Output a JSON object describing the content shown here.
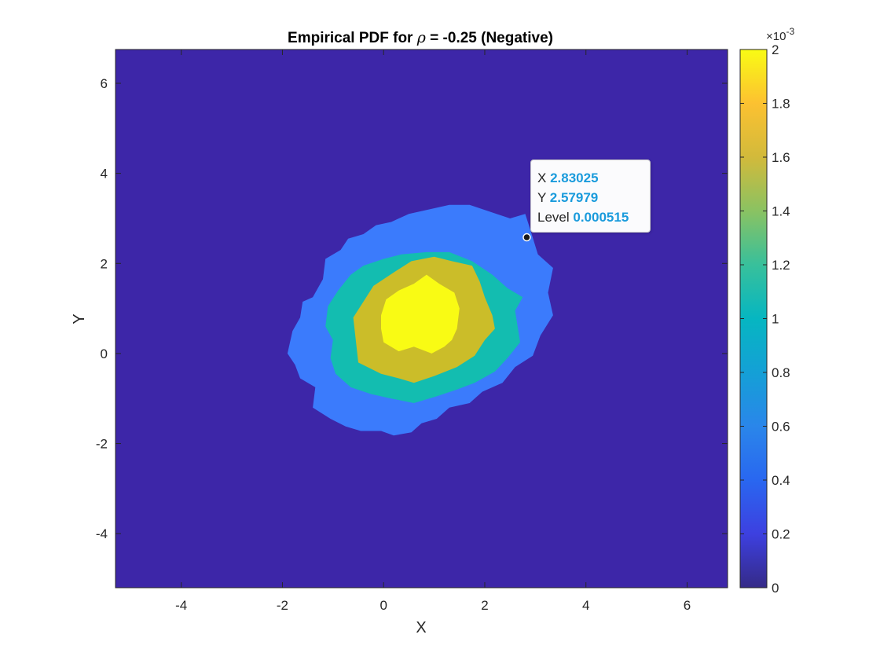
{
  "chart_data": {
    "type": "contourf",
    "title": "Empirical PDF for ρ = -0.25 (Negative)",
    "title_parts": {
      "prefix": "Empirical PDF for ",
      "symbol": "ρ",
      "suffix": " = -0.25 (Negative)"
    },
    "xlabel": "X",
    "ylabel": "Y",
    "xlim": [
      -5.3,
      6.8
    ],
    "ylim": [
      -5.2,
      6.75
    ],
    "xticks": [
      -4,
      -2,
      0,
      2,
      4,
      6
    ],
    "yticks": [
      -4,
      -2,
      0,
      2,
      4,
      6
    ],
    "xtick_labels": [
      "-4",
      "-2",
      "0",
      "2",
      "4",
      "6"
    ],
    "ytick_labels": [
      "-4",
      "-2",
      "0",
      "2",
      "4",
      "6"
    ],
    "background_level_color": "#3d26a8",
    "contour_levels": [
      {
        "level": 0.0005,
        "color": "#3b7bfc",
        "outline": [
          [
            -1.9,
            0.0
          ],
          [
            -1.8,
            0.5
          ],
          [
            -1.65,
            0.8
          ],
          [
            -1.6,
            1.15
          ],
          [
            -1.4,
            1.25
          ],
          [
            -1.2,
            1.65
          ],
          [
            -1.15,
            2.1
          ],
          [
            -0.85,
            2.3
          ],
          [
            -0.7,
            2.55
          ],
          [
            -0.4,
            2.65
          ],
          [
            -0.15,
            2.85
          ],
          [
            0.15,
            2.92
          ],
          [
            0.5,
            3.1
          ],
          [
            0.9,
            3.2
          ],
          [
            1.3,
            3.3
          ],
          [
            1.7,
            3.3
          ],
          [
            2.1,
            3.15
          ],
          [
            2.5,
            3.0
          ],
          [
            2.8,
            3.1
          ],
          [
            2.9,
            2.75
          ],
          [
            3.05,
            2.2
          ],
          [
            3.35,
            1.9
          ],
          [
            3.25,
            1.35
          ],
          [
            3.35,
            0.85
          ],
          [
            3.1,
            0.4
          ],
          [
            2.95,
            -0.05
          ],
          [
            2.6,
            -0.3
          ],
          [
            2.35,
            -0.65
          ],
          [
            1.95,
            -0.85
          ],
          [
            1.7,
            -1.1
          ],
          [
            1.3,
            -1.2
          ],
          [
            1.05,
            -1.45
          ],
          [
            0.75,
            -1.55
          ],
          [
            0.55,
            -1.75
          ],
          [
            0.2,
            -1.82
          ],
          [
            -0.05,
            -1.72
          ],
          [
            -0.45,
            -1.72
          ],
          [
            -0.75,
            -1.62
          ],
          [
            -1.05,
            -1.45
          ],
          [
            -1.4,
            -1.2
          ],
          [
            -1.35,
            -0.75
          ],
          [
            -1.65,
            -0.55
          ],
          [
            -1.75,
            -0.25
          ]
        ]
      },
      {
        "level": 0.001,
        "color": "#13bdb0",
        "outline": [
          [
            -1.15,
            0.6
          ],
          [
            -1.1,
            1.05
          ],
          [
            -0.9,
            1.4
          ],
          [
            -0.65,
            1.75
          ],
          [
            -0.4,
            1.95
          ],
          [
            0.0,
            2.1
          ],
          [
            0.35,
            2.2
          ],
          [
            0.85,
            2.25
          ],
          [
            1.3,
            2.25
          ],
          [
            1.75,
            2.05
          ],
          [
            2.15,
            1.75
          ],
          [
            2.45,
            1.45
          ],
          [
            2.75,
            1.25
          ],
          [
            2.6,
            0.95
          ],
          [
            2.65,
            0.6
          ],
          [
            2.7,
            0.25
          ],
          [
            2.45,
            -0.1
          ],
          [
            2.2,
            -0.4
          ],
          [
            1.8,
            -0.65
          ],
          [
            1.45,
            -0.8
          ],
          [
            1.05,
            -0.95
          ],
          [
            0.6,
            -1.1
          ],
          [
            0.15,
            -1.0
          ],
          [
            -0.25,
            -0.9
          ],
          [
            -0.65,
            -0.75
          ],
          [
            -0.95,
            -0.45
          ],
          [
            -1.05,
            -0.1
          ],
          [
            -1.0,
            0.3
          ]
        ]
      },
      {
        "level": 0.0015,
        "color": "#cbbd29",
        "outline": [
          [
            -0.6,
            0.8
          ],
          [
            -0.4,
            1.15
          ],
          [
            -0.2,
            1.5
          ],
          [
            0.2,
            1.8
          ],
          [
            0.55,
            2.05
          ],
          [
            1.0,
            2.15
          ],
          [
            1.35,
            2.05
          ],
          [
            1.75,
            1.95
          ],
          [
            1.9,
            1.6
          ],
          [
            2.0,
            1.25
          ],
          [
            2.15,
            0.85
          ],
          [
            2.2,
            0.55
          ],
          [
            2.0,
            0.3
          ],
          [
            1.8,
            -0.05
          ],
          [
            1.45,
            -0.3
          ],
          [
            1.0,
            -0.5
          ],
          [
            0.6,
            -0.65
          ],
          [
            0.3,
            -0.55
          ],
          [
            -0.05,
            -0.45
          ],
          [
            -0.5,
            -0.2
          ],
          [
            -0.55,
            0.3
          ]
        ]
      },
      {
        "level": 0.002,
        "color": "#f9fb14",
        "outline": [
          [
            -0.05,
            0.85
          ],
          [
            0.05,
            1.2
          ],
          [
            0.3,
            1.4
          ],
          [
            0.6,
            1.55
          ],
          [
            0.85,
            1.75
          ],
          [
            1.1,
            1.55
          ],
          [
            1.4,
            1.35
          ],
          [
            1.5,
            1.0
          ],
          [
            1.45,
            0.55
          ],
          [
            1.35,
            0.3
          ],
          [
            1.2,
            0.15
          ],
          [
            0.95,
            0.0
          ],
          [
            0.6,
            0.15
          ],
          [
            0.3,
            0.05
          ],
          [
            0.0,
            0.25
          ],
          [
            -0.05,
            0.55
          ]
        ]
      }
    ],
    "colorbar": {
      "range": [
        0,
        2
      ],
      "ticks": [
        0,
        0.2,
        0.4,
        0.6,
        0.8,
        1,
        1.2,
        1.4,
        1.6,
        1.8,
        2
      ],
      "tick_labels": [
        "0",
        "0.2",
        "0.4",
        "0.6",
        "0.8",
        "1",
        "1.2",
        "1.4",
        "1.6",
        "1.8",
        "2"
      ],
      "exponent_label": "×10",
      "exponent": "-3",
      "colormap": "parula"
    },
    "datatip": {
      "x_label": "X",
      "x_value": "2.83025",
      "y_label": "Y",
      "y_value": "2.57979",
      "level_label": "Level",
      "level_value": "0.000515",
      "point": [
        2.83025,
        2.57979
      ]
    }
  }
}
